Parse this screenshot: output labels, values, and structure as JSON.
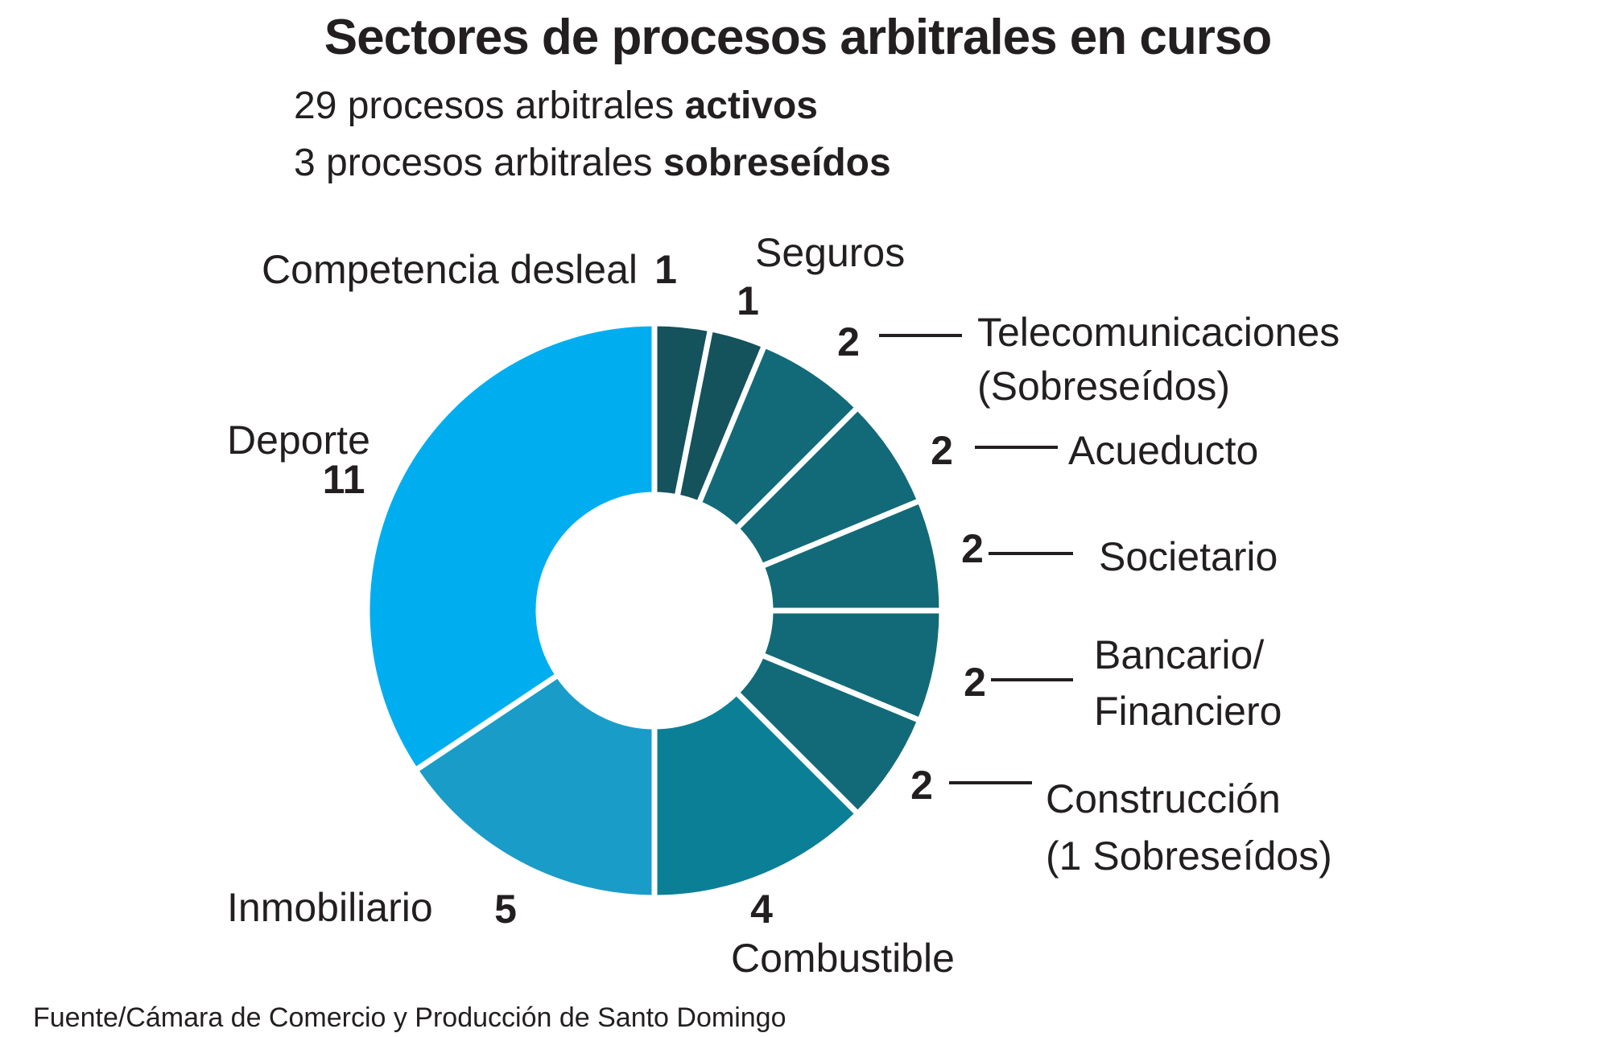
{
  "chart_data": {
    "type": "pie",
    "variant": "donut",
    "title": "Sectores de procesos arbitrales en curso",
    "subtitle_lines": [
      {
        "normal": "29 procesos arbitrales ",
        "bold": "activos"
      },
      {
        "normal": "3 procesos arbitrales ",
        "bold": "sobreseídos"
      }
    ],
    "source": "Fuente/Cámara de Comercio y Producción de Santo Domingo",
    "start": "top, clockwise",
    "slices": [
      {
        "label": "Competencia desleal",
        "value": 1,
        "value_label": "1",
        "color": "#14525c"
      },
      {
        "label": "Seguros",
        "value": 1,
        "value_label": "1",
        "color": "#14525c"
      },
      {
        "label": "Telecomunicaciones",
        "label2": "(Sobreseídos)",
        "value": 2,
        "value_label": "2",
        "color": "#126a78"
      },
      {
        "label": "Acueducto",
        "value": 2,
        "value_label": "2",
        "color": "#126a78"
      },
      {
        "label": "Societario",
        "value": 2,
        "value_label": "2",
        "color": "#126a78"
      },
      {
        "label": "Bancario/",
        "label2": "Financiero",
        "value": 2,
        "value_label": "2",
        "color": "#126a78"
      },
      {
        "label": "Construcción",
        "label2": "(1 Sobreseídos)",
        "value": 2,
        "value_label": "2",
        "color": "#126a78"
      },
      {
        "label": "Combustible",
        "value": 4,
        "value_label": "4",
        "color": "#0b7f96"
      },
      {
        "label": "Inmobiliario",
        "value": 5,
        "value_label": "5",
        "color": "#1a9cc9"
      },
      {
        "label": "Deporte",
        "value": 11,
        "value_label": "11",
        "color": "#00aeef"
      }
    ]
  }
}
